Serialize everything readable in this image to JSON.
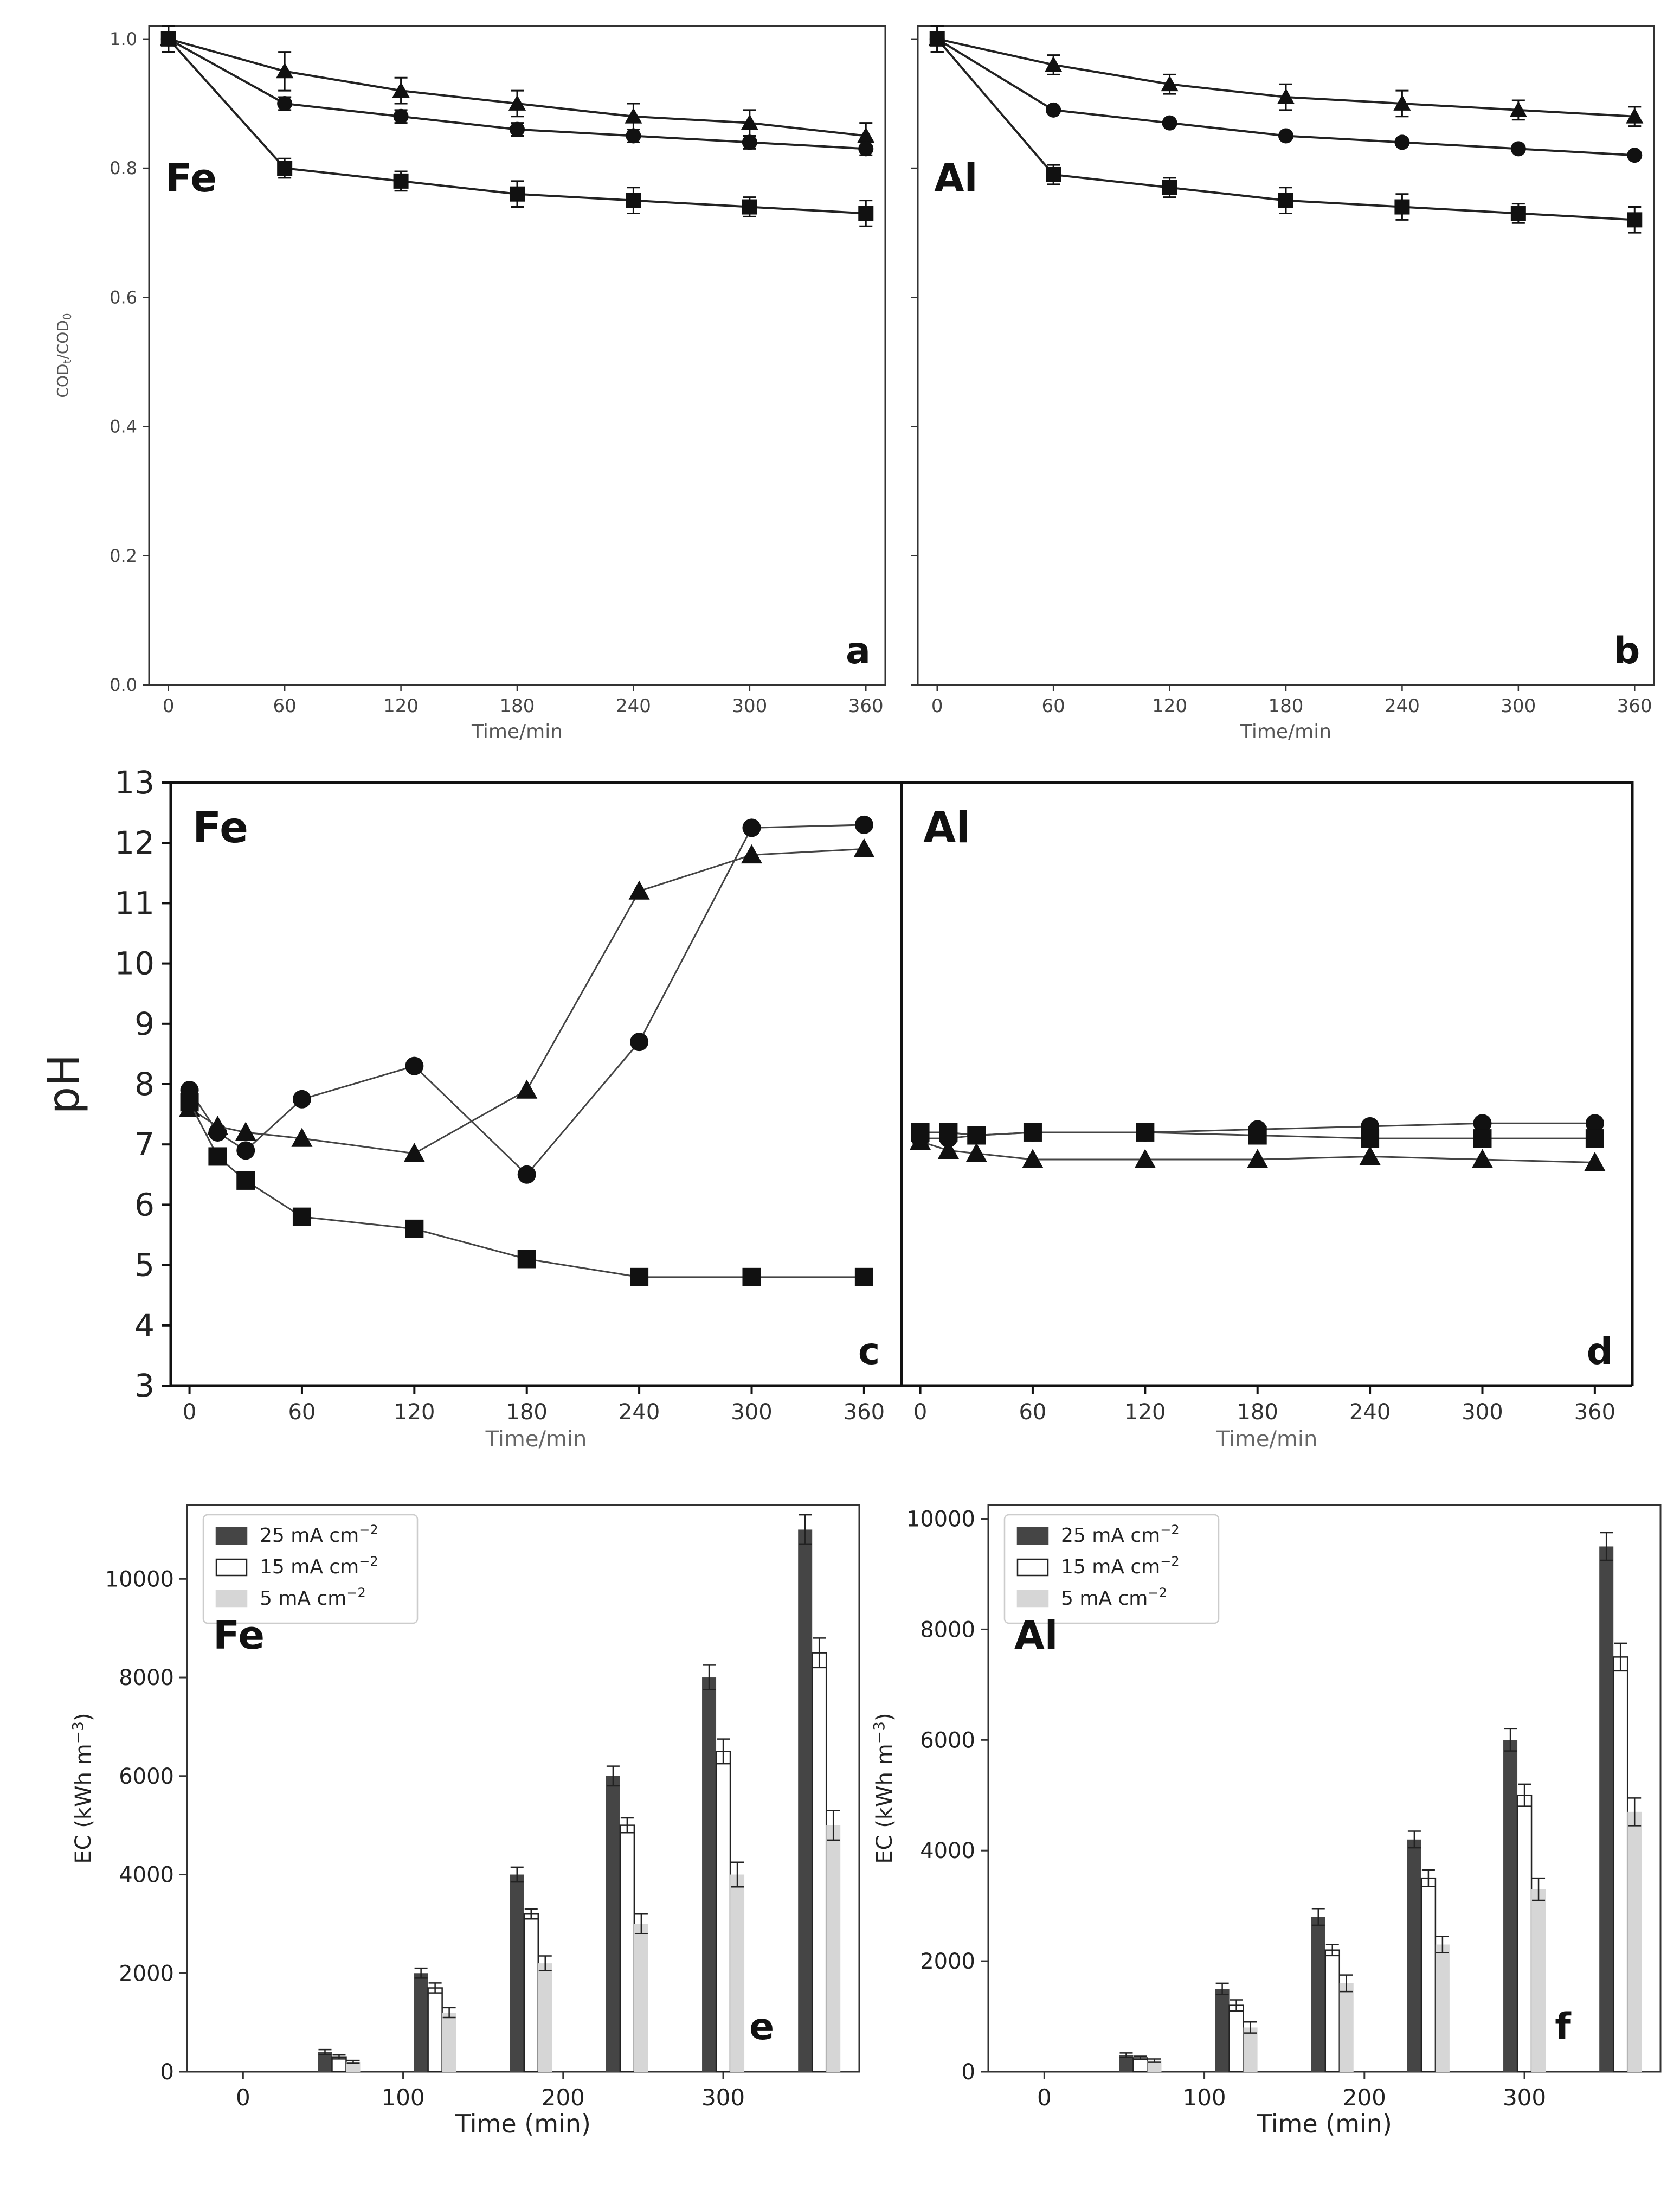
{
  "chart_data": [
    {
      "id": "a",
      "type": "line",
      "panel_letter": "a",
      "metal": "Fe",
      "xlabel": "Time/min",
      "ylabel": "COD",
      "ylabel_sub1": "t",
      "ylabel_mid": "/COD",
      "ylabel_sub2": "0",
      "xlim": [
        -10,
        370
      ],
      "ylim": [
        0,
        1.02
      ],
      "xticks": [
        0,
        60,
        120,
        180,
        240,
        300,
        360
      ],
      "yticks": [
        0.0,
        0.2,
        0.4,
        0.6,
        0.8,
        1.0
      ],
      "x": [
        0,
        60,
        120,
        180,
        240,
        300,
        360
      ],
      "series": [
        {
          "marker": "triangle",
          "values": [
            1.0,
            0.95,
            0.92,
            0.9,
            0.88,
            0.87,
            0.85
          ],
          "err": [
            0.02,
            0.03,
            0.02,
            0.02,
            0.02,
            0.02,
            0.02
          ]
        },
        {
          "marker": "circle",
          "values": [
            1.0,
            0.9,
            0.88,
            0.86,
            0.85,
            0.84,
            0.83
          ],
          "err": [
            0.02,
            0.01,
            0.01,
            0.01,
            0.01,
            0.01,
            0.01
          ]
        },
        {
          "marker": "square",
          "values": [
            1.0,
            0.8,
            0.78,
            0.76,
            0.75,
            0.74,
            0.73
          ],
          "err": [
            0.02,
            0.015,
            0.015,
            0.02,
            0.02,
            0.015,
            0.02
          ]
        }
      ]
    },
    {
      "id": "b",
      "type": "line",
      "panel_letter": "b",
      "metal": "Al",
      "xlabel": "Time/min",
      "xlim": [
        -10,
        370
      ],
      "ylim": [
        0,
        1.02
      ],
      "xticks": [
        0,
        60,
        120,
        180,
        240,
        300,
        360
      ],
      "x": [
        0,
        60,
        120,
        180,
        240,
        300,
        360
      ],
      "series": [
        {
          "marker": "triangle",
          "values": [
            1.0,
            0.96,
            0.93,
            0.91,
            0.9,
            0.89,
            0.88
          ],
          "err": [
            0.02,
            0.015,
            0.015,
            0.02,
            0.02,
            0.015,
            0.015
          ]
        },
        {
          "marker": "circle",
          "values": [
            1.0,
            0.89,
            0.87,
            0.85,
            0.84,
            0.83,
            0.82
          ],
          "err": [
            0.02,
            0.005,
            0.005,
            0.005,
            0.005,
            0.005,
            0.005
          ]
        },
        {
          "marker": "square",
          "values": [
            1.0,
            0.79,
            0.77,
            0.75,
            0.74,
            0.73,
            0.72
          ],
          "err": [
            0.02,
            0.015,
            0.015,
            0.02,
            0.02,
            0.015,
            0.02
          ]
        }
      ]
    },
    {
      "id": "c",
      "type": "line",
      "panel_letter": "c",
      "metal": "Fe",
      "xlabel": "Time/min",
      "ylabel": "pH",
      "xlim": [
        -10,
        380
      ],
      "ylim": [
        3,
        13
      ],
      "xticks": [
        0,
        60,
        120,
        180,
        240,
        300,
        360
      ],
      "yticks": [
        3,
        4,
        5,
        6,
        7,
        8,
        9,
        10,
        11,
        12,
        13
      ],
      "series": [
        {
          "marker": "circle",
          "x": [
            0,
            15,
            30,
            60,
            120,
            180,
            240,
            300,
            360
          ],
          "values": [
            7.9,
            7.2,
            6.9,
            7.75,
            8.3,
            6.5,
            8.7,
            12.25,
            12.3
          ]
        },
        {
          "marker": "triangle",
          "x": [
            0,
            15,
            30,
            60,
            120,
            180,
            240,
            300,
            360
          ],
          "values": [
            7.6,
            7.3,
            7.2,
            7.1,
            6.85,
            7.9,
            11.2,
            11.8,
            11.9
          ]
        },
        {
          "marker": "square",
          "x": [
            0,
            15,
            30,
            60,
            120,
            180,
            240,
            300,
            360
          ],
          "values": [
            7.7,
            6.8,
            6.4,
            5.8,
            5.6,
            5.1,
            4.8,
            4.8,
            4.8
          ]
        }
      ]
    },
    {
      "id": "d",
      "type": "line",
      "panel_letter": "d",
      "metal": "Al",
      "xlabel": "Time/min",
      "xlim": [
        -10,
        380
      ],
      "ylim": [
        3,
        13
      ],
      "xticks": [
        0,
        60,
        120,
        180,
        240,
        300,
        360
      ],
      "series": [
        {
          "marker": "circle",
          "x": [
            0,
            15,
            30,
            60,
            120,
            180,
            240,
            300,
            360
          ],
          "values": [
            7.1,
            7.1,
            7.15,
            7.2,
            7.2,
            7.25,
            7.3,
            7.35,
            7.35
          ]
        },
        {
          "marker": "square",
          "x": [
            0,
            15,
            30,
            60,
            120,
            180,
            240,
            300,
            360
          ],
          "values": [
            7.2,
            7.2,
            7.15,
            7.2,
            7.2,
            7.15,
            7.1,
            7.1,
            7.1
          ]
        },
        {
          "marker": "triangle",
          "x": [
            0,
            15,
            30,
            60,
            120,
            180,
            240,
            300,
            360
          ],
          "values": [
            7.05,
            6.9,
            6.85,
            6.75,
            6.75,
            6.75,
            6.8,
            6.75,
            6.7
          ]
        }
      ]
    },
    {
      "id": "e",
      "type": "bar",
      "panel_letter": "e",
      "metal": "Fe",
      "xlabel": "Time (min)",
      "ylabel": "EC (kWh m",
      "ylabel_sup": "−3",
      "ylabel_end": ")",
      "xlim": [
        -35,
        385
      ],
      "ylim": [
        0,
        11500
      ],
      "xticks": [
        0,
        100,
        200,
        300
      ],
      "yticks": [
        0,
        2000,
        4000,
        6000,
        8000,
        10000
      ],
      "categories": [
        60,
        120,
        180,
        240,
        300,
        360
      ],
      "series": [
        {
          "name": "25 mA cm",
          "name_sup": "−2",
          "color": "#454545",
          "values": [
            400,
            2000,
            4000,
            6000,
            8000,
            11000
          ],
          "err": [
            50,
            100,
            150,
            200,
            250,
            300
          ]
        },
        {
          "name": "15 mA cm",
          "name_sup": "−2",
          "color": "#ffffff",
          "values": [
            300,
            1700,
            3200,
            5000,
            6500,
            8500
          ],
          "err": [
            40,
            100,
            100,
            150,
            250,
            300
          ]
        },
        {
          "name": "5 mA cm",
          "name_sup": "−2",
          "color": "#d6d6d6",
          "values": [
            200,
            1200,
            2200,
            3000,
            4000,
            5000
          ],
          "err": [
            30,
            100,
            150,
            200,
            250,
            300
          ]
        }
      ]
    },
    {
      "id": "f",
      "type": "bar",
      "panel_letter": "f",
      "metal": "Al",
      "xlabel": "Time (min)",
      "ylabel": "EC (kWh m",
      "ylabel_sup": "−3",
      "ylabel_end": ")",
      "xlim": [
        -35,
        385
      ],
      "ylim": [
        0,
        10250
      ],
      "xticks": [
        0,
        100,
        200,
        300
      ],
      "yticks": [
        0,
        2000,
        4000,
        6000,
        8000,
        10000
      ],
      "categories": [
        60,
        120,
        180,
        240,
        300,
        360
      ],
      "series": [
        {
          "name": "25 mA cm",
          "name_sup": "−2",
          "color": "#454545",
          "values": [
            300,
            1500,
            2800,
            4200,
            6000,
            9500
          ],
          "err": [
            40,
            100,
            150,
            150,
            200,
            250
          ]
        },
        {
          "name": "15 mA cm",
          "name_sup": "−2",
          "color": "#ffffff",
          "values": [
            250,
            1200,
            2200,
            3500,
            5000,
            7500
          ],
          "err": [
            30,
            100,
            100,
            150,
            200,
            250
          ]
        },
        {
          "name": "5 mA cm",
          "name_sup": "−2",
          "color": "#d6d6d6",
          "values": [
            200,
            800,
            1600,
            2300,
            3300,
            4700
          ],
          "err": [
            30,
            100,
            150,
            150,
            200,
            250
          ]
        }
      ]
    }
  ]
}
